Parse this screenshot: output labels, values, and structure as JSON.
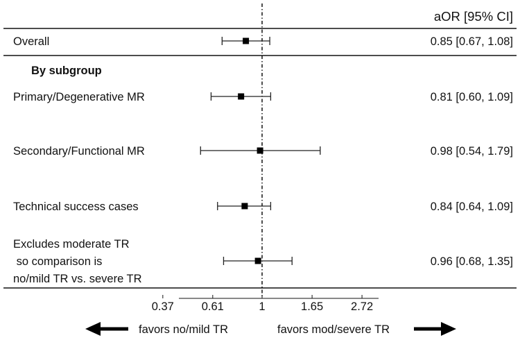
{
  "chart_data": {
    "type": "forest",
    "column_header": "aOR [95% CI]",
    "section_label": "By subgroup",
    "x_scale": "log",
    "x_ticks": [
      "0.37",
      "0.61",
      "1",
      "1.65",
      "2.72"
    ],
    "x_tick_values": [
      0.37,
      0.61,
      1,
      1.65,
      2.72
    ],
    "reference_value": 1,
    "rows": [
      {
        "label_lines": [
          "Overall"
        ],
        "or": 0.85,
        "lo": 0.67,
        "hi": 1.08,
        "text": "0.85 [0.67, 1.08]"
      },
      {
        "label_lines": [
          "Primary/Degenerative MR"
        ],
        "or": 0.81,
        "lo": 0.6,
        "hi": 1.09,
        "text": "0.81 [0.60, 1.09]"
      },
      {
        "label_lines": [
          "Secondary/Functional MR"
        ],
        "or": 0.98,
        "lo": 0.54,
        "hi": 1.79,
        "text": "0.98 [0.54, 1.79]"
      },
      {
        "label_lines": [
          "Technical success cases"
        ],
        "or": 0.84,
        "lo": 0.64,
        "hi": 1.09,
        "text": "0.84 [0.64, 1.09]"
      },
      {
        "label_lines": [
          "Excludes moderate TR",
          " so comparison is",
          "no/mild TR vs. severe TR"
        ],
        "or": 0.96,
        "lo": 0.68,
        "hi": 1.35,
        "text": "0.96 [0.68, 1.35]"
      }
    ],
    "favors_left": "favors no/mild TR",
    "favors_right": "favors mod/severe TR"
  }
}
